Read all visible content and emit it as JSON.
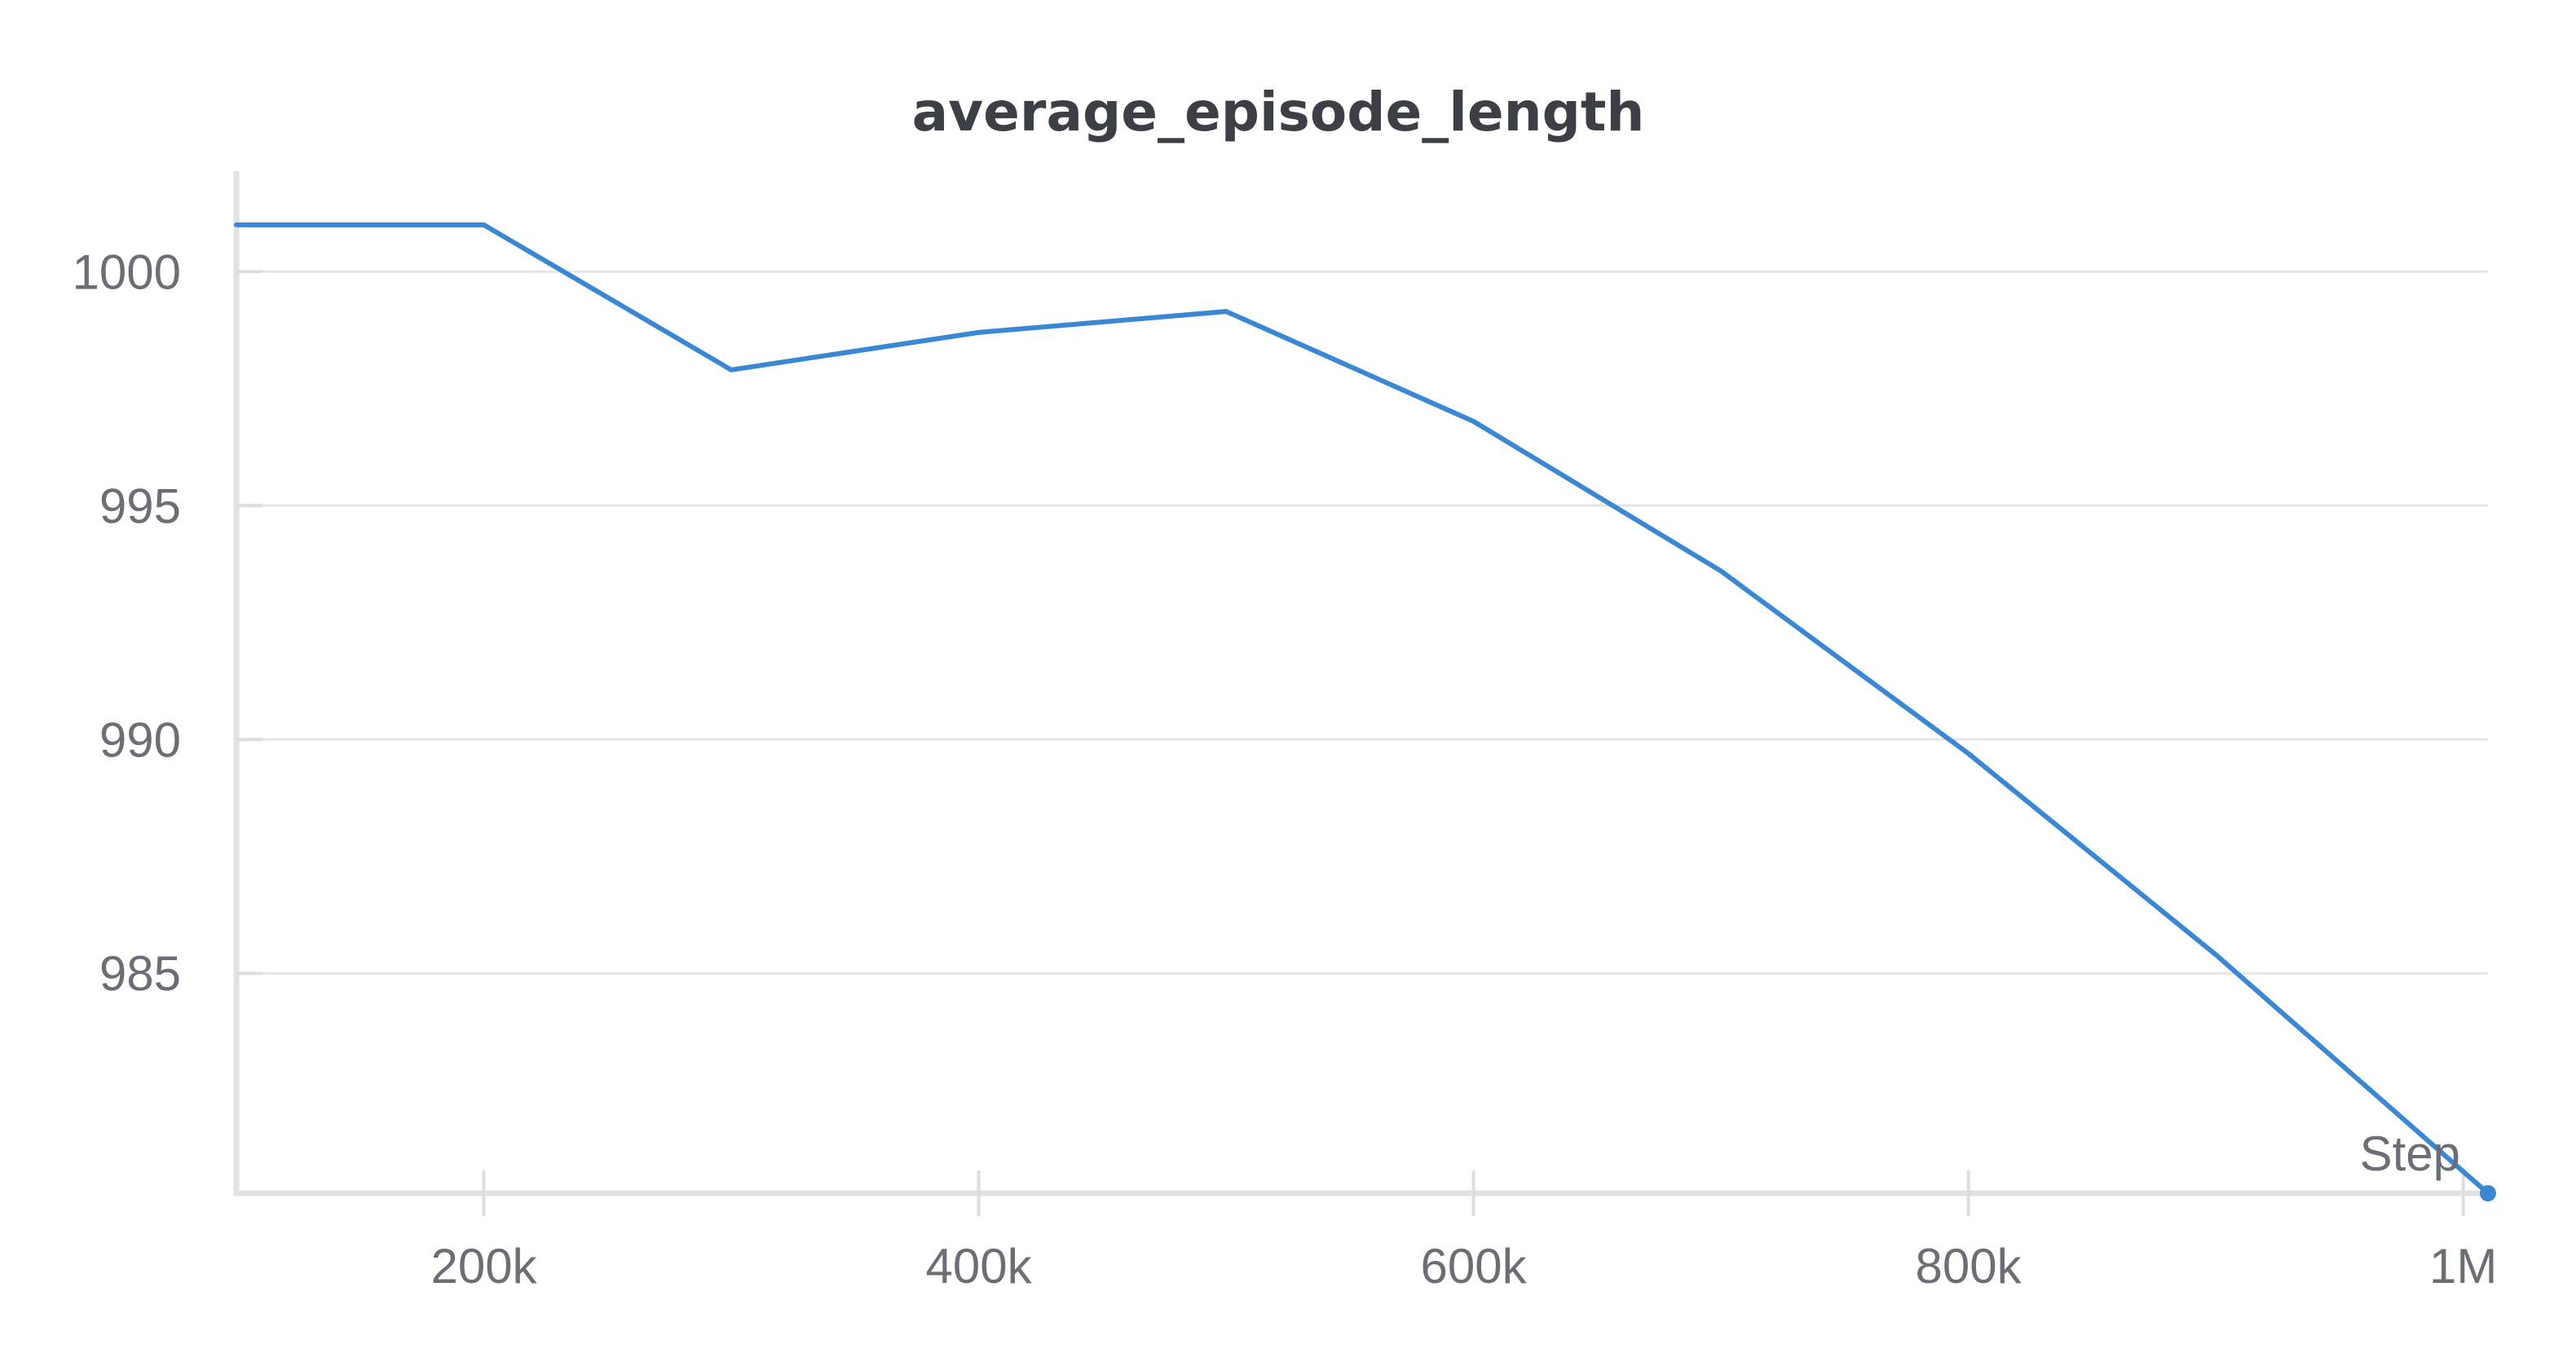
{
  "chart_data": {
    "type": "line",
    "title": "average_episode_length",
    "xlabel": "Step",
    "ylabel": "",
    "xlim": [
      100000,
      1010000
    ],
    "ylim": [
      980.3,
      1001.8
    ],
    "x_ticks": [
      200000,
      400000,
      600000,
      800000,
      1000000
    ],
    "x_tick_labels": [
      "200k",
      "400k",
      "600k",
      "800k",
      "1M"
    ],
    "y_ticks": [
      985,
      990,
      995,
      1000
    ],
    "y_tick_labels": [
      "985",
      "990",
      "995",
      "1000"
    ],
    "grid": true,
    "legend": "none",
    "series": [
      {
        "color": "#3a87d4",
        "x": [
          100000,
          200000,
          300000,
          400000,
          500000,
          600000,
          700000,
          800000,
          900000,
          1010000
        ],
        "y": [
          1001.0,
          1001.0,
          997.9,
          998.7,
          999.15,
          996.8,
          993.6,
          989.7,
          985.4,
          980.3
        ]
      }
    ]
  }
}
